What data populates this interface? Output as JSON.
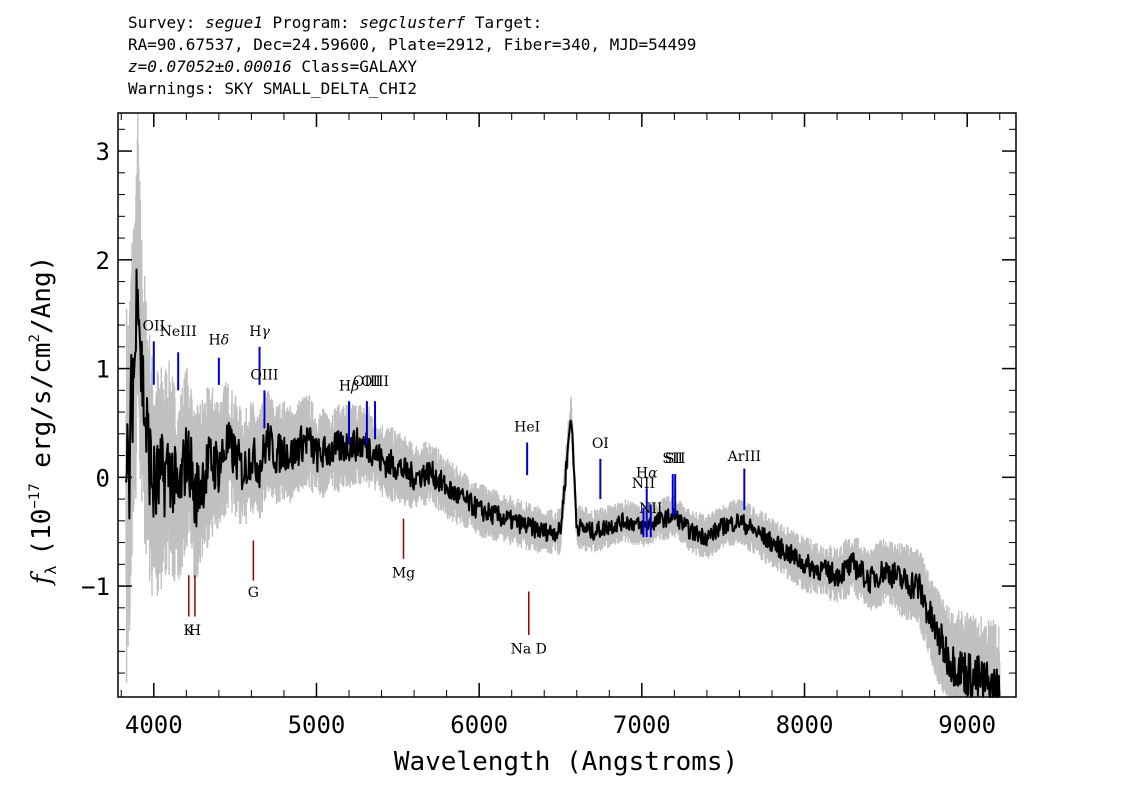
{
  "header": {
    "survey_label": "Survey:",
    "survey": "segue1",
    "program_label": "Program:",
    "program": "segclusterf",
    "target_label": "Target:",
    "coords": "RA=90.67537, Dec=24.59600, Plate=2912, Fiber=340, MJD=54499",
    "redshift": "z=0.07052±0.00016",
    "class_text": "Class=GALAXY",
    "warnings": "Warnings: SKY SMALL_DELTA_CHI2"
  },
  "colors": {
    "spectrum": "#000000",
    "error_band": "#c0c0c0",
    "emission": "#0000cc",
    "absorption": "#990000"
  },
  "chart_data": {
    "type": "line",
    "title": "",
    "xlabel": "Wavelength (Angstroms)",
    "ylabel": "f_λ (10^-17 erg/s/cm²/Ang)",
    "ylabel_parts": {
      "f": "f",
      "sub": "λ",
      "pre": "(10",
      "exp1": "−17",
      "mid": " erg/s/cm",
      "exp2": "2",
      "post": "/Ang)"
    },
    "xlim": [
      3780,
      9300
    ],
    "ylim": [
      -2.02,
      3.35
    ],
    "xticks": [
      4000,
      5000,
      6000,
      7000,
      8000,
      9000
    ],
    "xtick_labels": [
      "4000",
      "5000",
      "6000",
      "7000",
      "8000",
      "9000"
    ],
    "yticks": [
      -1,
      0,
      1,
      2,
      3
    ],
    "ytick_labels": [
      "−1",
      "0",
      "1",
      "2",
      "3"
    ],
    "grid": false,
    "series": [
      {
        "role": "flux",
        "x": [
          3830,
          3850,
          3870,
          3890,
          3900,
          3920,
          3950,
          3980,
          4000,
          4050,
          4100,
          4150,
          4200,
          4230,
          4250,
          4300,
          4350,
          4400,
          4450,
          4500,
          4550,
          4600,
          4650,
          4700,
          4750,
          4800,
          4850,
          4900,
          4950,
          5000,
          5100,
          5200,
          5300,
          5350,
          5400,
          5500,
          5600,
          5700,
          5800,
          5900,
          6000,
          6100,
          6200,
          6300,
          6400,
          6500,
          6565,
          6600,
          6700,
          6800,
          6900,
          7000,
          7100,
          7200,
          7300,
          7400,
          7500,
          7600,
          7700,
          7800,
          7900,
          8000,
          8100,
          8200,
          8300,
          8400,
          8500,
          8600,
          8700,
          8800,
          8900,
          9000,
          9100,
          9200
        ],
        "y": [
          -0.2,
          0.0,
          0.9,
          1.2,
          2.2,
          1.1,
          0.5,
          0.1,
          -0.1,
          0.0,
          0.1,
          -0.2,
          0.2,
          0.1,
          -0.2,
          0.0,
          0.15,
          0.1,
          0.3,
          0.2,
          0.05,
          0.2,
          0.1,
          0.35,
          0.2,
          0.25,
          0.2,
          0.3,
          0.35,
          0.2,
          0.25,
          0.3,
          0.3,
          0.25,
          0.15,
          0.1,
          0.0,
          0.05,
          -0.1,
          -0.2,
          -0.3,
          -0.35,
          -0.4,
          -0.45,
          -0.5,
          -0.5,
          0.6,
          -0.45,
          -0.5,
          -0.45,
          -0.4,
          -0.45,
          -0.4,
          -0.35,
          -0.5,
          -0.55,
          -0.45,
          -0.4,
          -0.5,
          -0.6,
          -0.7,
          -0.8,
          -0.85,
          -0.9,
          -0.8,
          -0.95,
          -0.85,
          -0.95,
          -1.0,
          -1.4,
          -1.7,
          -1.8,
          -1.9,
          -2.0
        ]
      },
      {
        "role": "error",
        "x": [
          3830,
          3900,
          4000,
          4100,
          4200,
          4300,
          4500,
          4700,
          5000,
          5300,
          5600,
          6000,
          6300,
          6600,
          7000,
          7500,
          8000,
          8500,
          8800,
          9000,
          9200
        ],
        "y": [
          1.3,
          1.0,
          0.8,
          0.7,
          0.6,
          0.55,
          0.4,
          0.35,
          0.3,
          0.28,
          0.22,
          0.18,
          0.16,
          0.15,
          0.14,
          0.15,
          0.18,
          0.22,
          0.3,
          0.4,
          0.5
        ]
      }
    ],
    "emission_lines": [
      {
        "label": "OII",
        "sub": "",
        "x": 4000,
        "y_top": 1.25,
        "y_bot": 0.85,
        "label_y": 1.35
      },
      {
        "label": "NeIII",
        "sub": "",
        "x": 4150,
        "y_top": 1.15,
        "y_bot": 0.8,
        "label_y": 1.3
      },
      {
        "label": "H",
        "sub": "δ",
        "x": 4400,
        "y_top": 1.1,
        "y_bot": 0.85,
        "label_y": 1.22
      },
      {
        "label": "H",
        "sub": "γ",
        "x": 4650,
        "y_top": 1.2,
        "y_bot": 0.85,
        "label_y": 1.3
      },
      {
        "label": "OIII",
        "sub": "",
        "x": 4680,
        "y_top": 0.8,
        "y_bot": 0.45,
        "label_y": 0.9
      },
      {
        "label": "H",
        "sub": "β",
        "x": 5200,
        "y_top": 0.7,
        "y_bot": 0.3,
        "label_y": 0.8
      },
      {
        "label": "OIII",
        "sub": "",
        "x": 5310,
        "y_top": 0.7,
        "y_bot": 0.3,
        "label_y": 0.84
      },
      {
        "label": "OIII",
        "sub": "",
        "x": 5360,
        "y_top": 0.7,
        "y_bot": 0.35,
        "label_y": 0.84
      },
      {
        "label": "HeI",
        "sub": "",
        "x": 6295,
        "y_top": 0.32,
        "y_bot": 0.02,
        "label_y": 0.42
      },
      {
        "label": "OI",
        "sub": "",
        "x": 6745,
        "y_top": 0.17,
        "y_bot": -0.2,
        "label_y": 0.27
      },
      {
        "label": "NII",
        "sub": "",
        "x": 7010,
        "y_top": -0.28,
        "y_bot": -0.55,
        "label_y": -0.1
      },
      {
        "label": "H",
        "sub": "α",
        "x": 7030,
        "y_top": -0.1,
        "y_bot": -0.55,
        "label_y": -0.0
      },
      {
        "label": "NII",
        "sub": "",
        "x": 7055,
        "y_top": -0.25,
        "y_bot": -0.55,
        "label_y": -0.33
      },
      {
        "label": "SII",
        "sub": "",
        "x": 7190,
        "y_top": 0.03,
        "y_bot": -0.35,
        "label_y": 0.13
      },
      {
        "label": "SII",
        "sub": "",
        "x": 7205,
        "y_top": 0.03,
        "y_bot": -0.35,
        "label_y": 0.13
      },
      {
        "label": "ArIII",
        "sub": "",
        "x": 7630,
        "y_top": 0.08,
        "y_bot": -0.3,
        "label_y": 0.15
      }
    ],
    "absorption_lines": [
      {
        "label": "K",
        "x": 4215,
        "y_top": -0.9,
        "y_bot": -1.28,
        "label_y": -1.45
      },
      {
        "label": "H",
        "x": 4253,
        "y_top": -0.9,
        "y_bot": -1.28,
        "label_y": -1.45
      },
      {
        "label": "G",
        "x": 4612,
        "y_top": -0.58,
        "y_bot": -0.95,
        "label_y": -1.1
      },
      {
        "label": "Mg",
        "x": 5535,
        "y_top": -0.38,
        "y_bot": -0.75,
        "label_y": -0.92
      },
      {
        "label": "Na D",
        "x": 6305,
        "y_top": -1.05,
        "y_bot": -1.45,
        "label_y": -1.62
      }
    ]
  }
}
